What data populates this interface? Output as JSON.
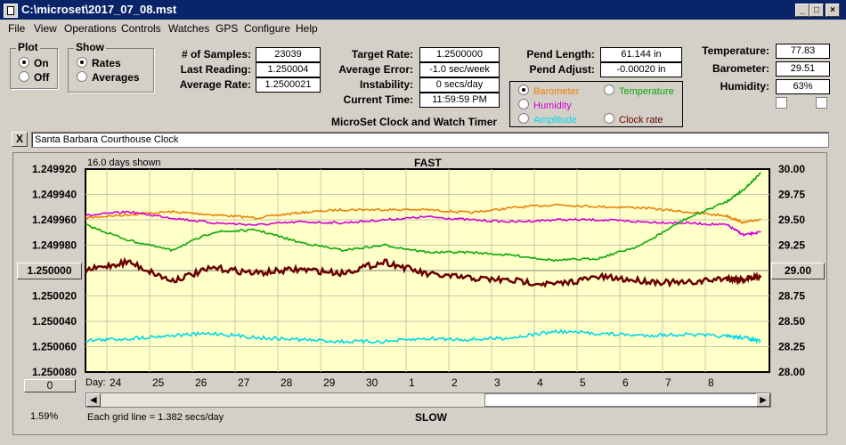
{
  "window": {
    "title": "C:\\microset\\2017_07_08.mst"
  },
  "menu": [
    "File",
    "View",
    "Operations",
    "Controls",
    "Watches",
    "GPS",
    "Configure",
    "Help"
  ],
  "plot_group": {
    "title": "Plot",
    "on": "On",
    "off": "Off",
    "selected": "On"
  },
  "show_group": {
    "title": "Show",
    "rates": "Rates",
    "averages": "Averages",
    "selected": "Rates"
  },
  "stats": {
    "samples_label": "# of Samples:",
    "samples": "23039",
    "last_label": "Last Reading:",
    "last": "1.250004",
    "avg_label": "Average Rate:",
    "avg": "1.2500021"
  },
  "target": {
    "target_label": "Target Rate:",
    "target": "1.2500000",
    "error_label": "Average Error:",
    "error": "-1.0 sec/week",
    "instab_label": "Instability:",
    "instab": "0 secs/day",
    "time_label": "Current Time:",
    "time": "11:59:59 PM"
  },
  "app_caption": "MicroSet Clock and Watch Timer",
  "pend": {
    "length_label": "Pend Length:",
    "length": "61.144 in",
    "adjust_label": "Pend Adjust:",
    "adjust": "-0.00020 in"
  },
  "sensor_select": {
    "barometer": "Barometer",
    "temperature": "Temperature",
    "humidity": "Humidity",
    "amplitude": "Amplitude",
    "clock_rate": "Clock rate",
    "selected": "Barometer",
    "colors": {
      "barometer": "#e8820c",
      "temperature": "#0ca80c",
      "humidity": "#d400d4",
      "amplitude": "#00d8e8",
      "clock_rate": "#6a0000"
    }
  },
  "env": {
    "temp_label": "Temperature:",
    "temp": "77.83",
    "baro_label": "Barometer:",
    "baro": "29.51",
    "hum_label": "Humidity:",
    "hum": "63%"
  },
  "note": {
    "close": "X",
    "text": "Santa Barbara Courthouse Clock"
  },
  "chart": {
    "days_shown": "16.0 days shown",
    "fast": "FAST",
    "slow": "SLOW",
    "grid_note": "Each grid line = 1.382 secs/day",
    "left_center": "1.250000",
    "right_center": "29.00",
    "left_bottom_btn": "0",
    "percent": "1.59%",
    "day_label": "Day:",
    "plot_bg": "#ffffc8"
  },
  "chart_data": {
    "type": "line",
    "x_label": "Day:",
    "x_ticks": [
      "24",
      "25",
      "26",
      "27",
      "28",
      "29",
      "30",
      "1",
      "2",
      "3",
      "4",
      "5",
      "6",
      "7",
      "8"
    ],
    "left_axis_ticks": [
      "1.249920",
      "1.249940",
      "1.249960",
      "1.249980",
      "1.250000",
      "1.250020",
      "1.250040",
      "1.250060",
      "1.250080"
    ],
    "right_axis_ticks": [
      "30.00",
      "29.75",
      "29.50",
      "29.25",
      "29.00",
      "28.75",
      "28.50",
      "28.25",
      "28.00"
    ],
    "x_range_days": [
      0,
      16
    ],
    "left_ylim": [
      1.24992,
      1.25008
    ],
    "right_ylim": [
      28.0,
      30.0
    ],
    "series": [
      {
        "name": "Barometer",
        "color": "#e8820c",
        "axis": "right",
        "x": [
          0,
          1,
          2,
          3,
          4,
          5,
          6,
          7,
          8,
          9,
          10,
          11,
          12,
          13,
          14,
          15,
          15.4,
          15.8
        ],
        "values": [
          29.52,
          29.55,
          29.58,
          29.55,
          29.52,
          29.57,
          29.6,
          29.6,
          29.6,
          29.57,
          29.62,
          29.65,
          29.63,
          29.62,
          29.58,
          29.54,
          29.47,
          29.51
        ]
      },
      {
        "name": "Humidity",
        "color": "#d400d4",
        "axis": "right",
        "x": [
          0,
          1,
          2,
          3,
          4,
          5,
          6,
          7,
          8,
          9,
          10,
          11,
          12,
          13,
          14,
          15,
          15.4,
          15.8
        ],
        "values": [
          29.54,
          29.58,
          29.52,
          29.47,
          29.45,
          29.48,
          29.47,
          29.5,
          29.53,
          29.5,
          29.48,
          29.5,
          29.5,
          29.48,
          29.47,
          29.45,
          29.35,
          29.38
        ]
      },
      {
        "name": "Temperature",
        "color": "#0ca80c",
        "axis": "right",
        "x": [
          0,
          1,
          2,
          3,
          4,
          5,
          6,
          7,
          8,
          9,
          10,
          11,
          12,
          13,
          14,
          15,
          15.4,
          15.8
        ],
        "values": [
          29.45,
          29.3,
          29.2,
          29.38,
          29.4,
          29.28,
          29.2,
          29.25,
          29.18,
          29.18,
          29.15,
          29.1,
          29.12,
          29.25,
          29.5,
          29.68,
          29.8,
          29.96
        ]
      },
      {
        "name": "Clock rate",
        "color": "#6a0000",
        "axis": "left",
        "x": [
          0,
          1,
          2,
          3,
          4,
          5,
          6,
          7,
          8,
          9,
          10,
          11,
          12,
          13,
          14,
          15,
          15.4,
          15.8
        ],
        "values": [
          1.25,
          1.249993,
          1.250008,
          1.249998,
          1.250002,
          1.249999,
          1.250002,
          1.249993,
          1.250003,
          1.250006,
          1.250008,
          1.250011,
          1.250005,
          1.250008,
          1.25001,
          1.250006,
          1.250007,
          1.250004
        ]
      },
      {
        "name": "Amplitude",
        "color": "#00d8e8",
        "axis": "right",
        "x": [
          0,
          1,
          2,
          3,
          4,
          5,
          6,
          7,
          8,
          9,
          10,
          11,
          12,
          13,
          14,
          15,
          15.4,
          15.8
        ],
        "values": [
          28.31,
          28.33,
          28.36,
          28.38,
          28.34,
          28.32,
          28.3,
          28.3,
          28.33,
          28.32,
          28.34,
          28.4,
          28.38,
          28.36,
          28.37,
          28.35,
          28.34,
          28.3
        ]
      }
    ]
  }
}
